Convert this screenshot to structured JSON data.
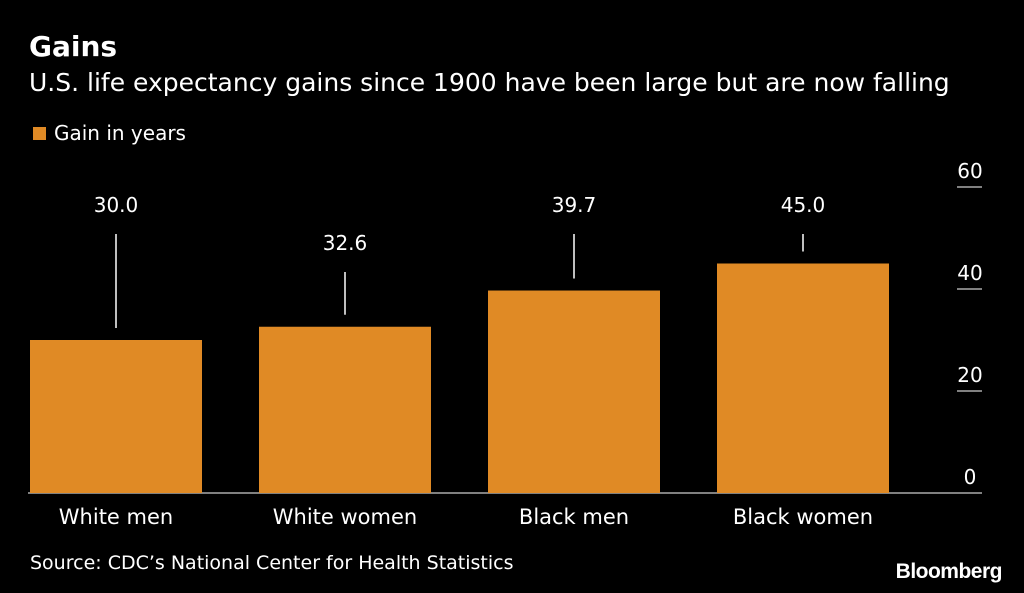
{
  "title": "Gains",
  "subtitle": "U.S. life expectancy gains since 1900 have been large but are now falling",
  "source": "Source: CDC’s National Center for Health Statistics",
  "brand": "Bloomberg",
  "colors": {
    "background": "#000000",
    "bar": "#E08A25",
    "text": "#ffffff"
  },
  "chart_data": {
    "type": "bar",
    "categories": [
      "White men",
      "White women",
      "Black men",
      "Black women"
    ],
    "series": [
      {
        "name": "Gain in years",
        "values": [
          30.0,
          32.6,
          39.7,
          45.0
        ],
        "labels": [
          "30.0",
          "32.6",
          "39.7",
          "45.0"
        ]
      }
    ],
    "ylim": [
      0,
      60
    ],
    "yticks": [
      0,
      20,
      40,
      60
    ],
    "ytick_labels": [
      "0",
      "20",
      "40",
      "60"
    ],
    "y_axis_position": "right",
    "grid": false,
    "legend": "top-left"
  }
}
